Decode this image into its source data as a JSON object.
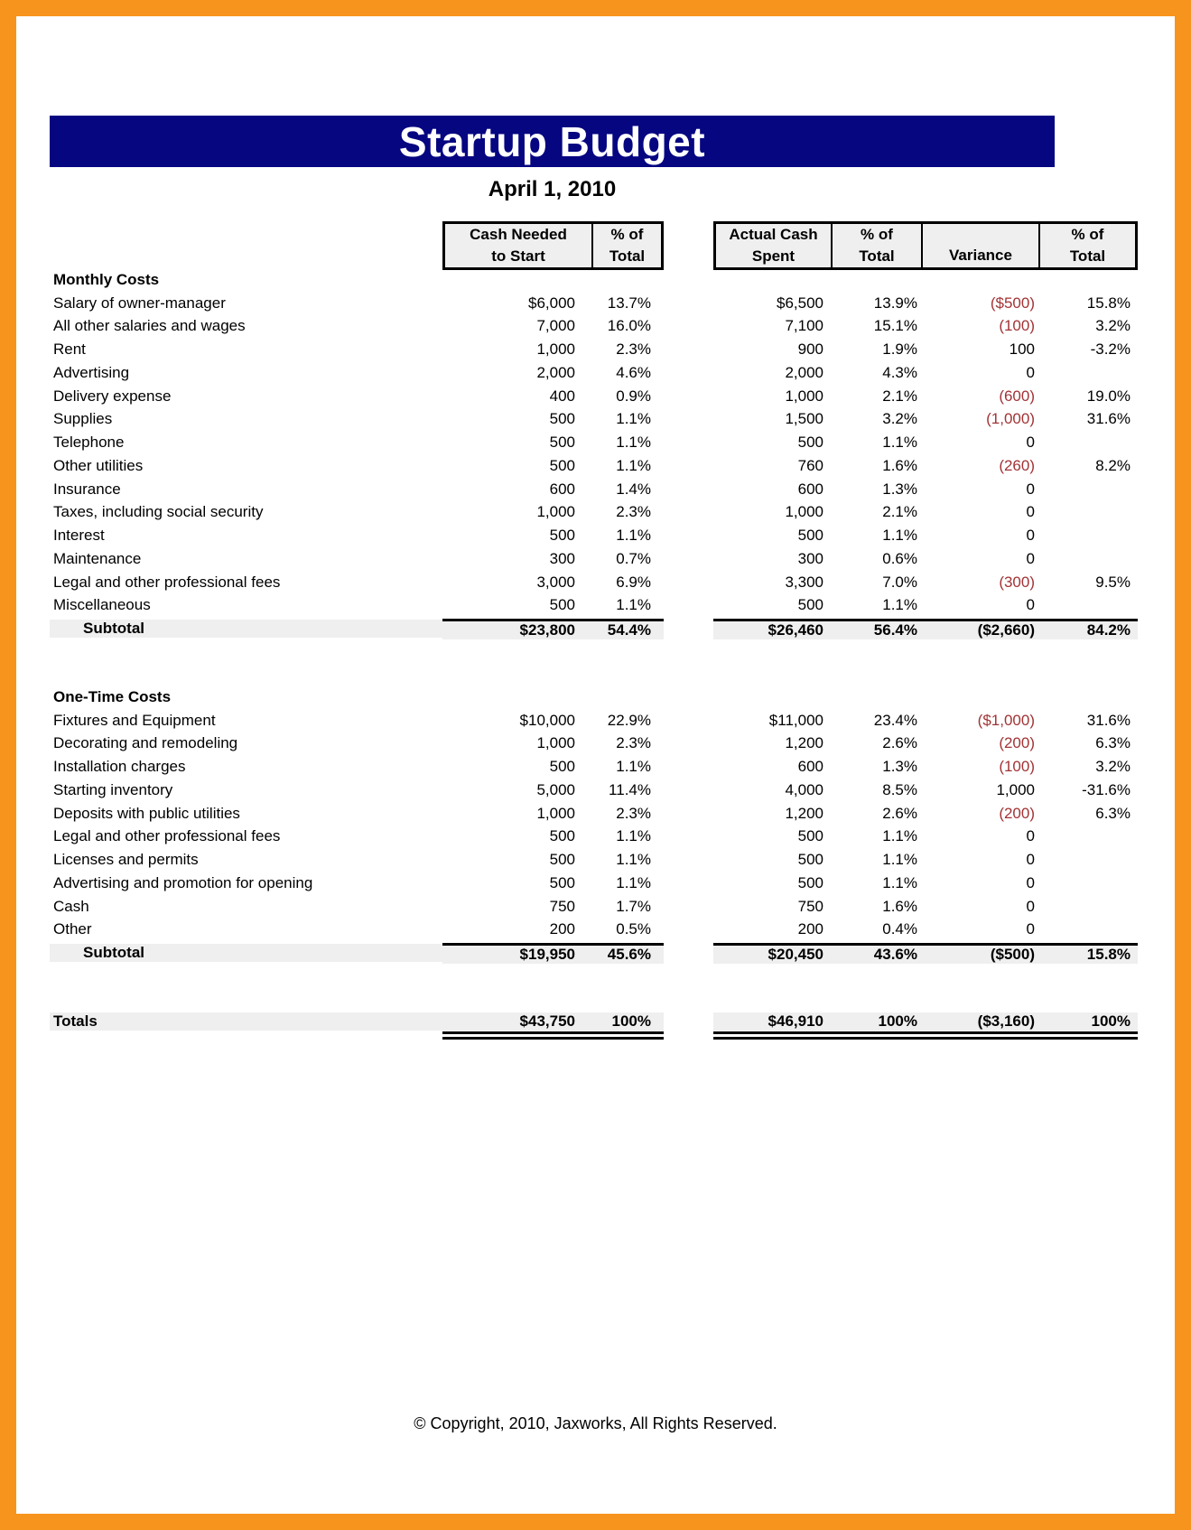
{
  "header": {
    "title": "Startup Budget",
    "date": "April 1, 2010"
  },
  "columns": {
    "group1": [
      {
        "top": "Cash Needed",
        "bottom": "to Start"
      },
      {
        "top": "% of",
        "bottom": "Total"
      }
    ],
    "group2": [
      {
        "top": "Actual Cash",
        "bottom": "Spent"
      },
      {
        "top": "% of",
        "bottom": "Total"
      },
      {
        "top": "",
        "bottom": "Variance"
      },
      {
        "top": "% of",
        "bottom": "Total"
      }
    ]
  },
  "sections": [
    {
      "name": "Monthly Costs",
      "rows": [
        {
          "label": "Salary of owner-manager",
          "cells": [
            "$6,000",
            "13.7%",
            "$6,500",
            "13.9%",
            "($500)",
            "15.8%"
          ]
        },
        {
          "label": "All other salaries and wages",
          "cells": [
            "7,000",
            "16.0%",
            "7,100",
            "15.1%",
            "(100)",
            "3.2%"
          ]
        },
        {
          "label": "Rent",
          "cells": [
            "1,000",
            "2.3%",
            "900",
            "1.9%",
            "100",
            "-3.2%"
          ]
        },
        {
          "label": "Advertising",
          "cells": [
            "2,000",
            "4.6%",
            "2,000",
            "4.3%",
            "0",
            ""
          ]
        },
        {
          "label": "Delivery expense",
          "cells": [
            "400",
            "0.9%",
            "1,000",
            "2.1%",
            "(600)",
            "19.0%"
          ]
        },
        {
          "label": "Supplies",
          "cells": [
            "500",
            "1.1%",
            "1,500",
            "3.2%",
            "(1,000)",
            "31.6%"
          ]
        },
        {
          "label": "Telephone",
          "cells": [
            "500",
            "1.1%",
            "500",
            "1.1%",
            "0",
            ""
          ]
        },
        {
          "label": "Other utilities",
          "cells": [
            "500",
            "1.1%",
            "760",
            "1.6%",
            "(260)",
            "8.2%"
          ]
        },
        {
          "label": "Insurance",
          "cells": [
            "600",
            "1.4%",
            "600",
            "1.3%",
            "0",
            ""
          ]
        },
        {
          "label": "Taxes, including social security",
          "cells": [
            "1,000",
            "2.3%",
            "1,000",
            "2.1%",
            "0",
            ""
          ]
        },
        {
          "label": "Interest",
          "cells": [
            "500",
            "1.1%",
            "500",
            "1.1%",
            "0",
            ""
          ]
        },
        {
          "label": "Maintenance",
          "cells": [
            "300",
            "0.7%",
            "300",
            "0.6%",
            "0",
            ""
          ]
        },
        {
          "label": "Legal and other professional fees",
          "cells": [
            "3,000",
            "6.9%",
            "3,300",
            "7.0%",
            "(300)",
            "9.5%"
          ]
        },
        {
          "label": "Miscellaneous",
          "cells": [
            "500",
            "1.1%",
            "500",
            "1.1%",
            "0",
            ""
          ]
        }
      ],
      "subtotal": {
        "label": "Subtotal",
        "cells": [
          "$23,800",
          "54.4%",
          "$26,460",
          "56.4%",
          "($2,660)",
          "84.2%"
        ]
      }
    },
    {
      "name": "One-Time Costs",
      "rows": [
        {
          "label": "Fixtures and Equipment",
          "cells": [
            "$10,000",
            "22.9%",
            "$11,000",
            "23.4%",
            "($1,000)",
            "31.6%"
          ]
        },
        {
          "label": "Decorating and remodeling",
          "cells": [
            "1,000",
            "2.3%",
            "1,200",
            "2.6%",
            "(200)",
            "6.3%"
          ]
        },
        {
          "label": "Installation charges",
          "cells": [
            "500",
            "1.1%",
            "600",
            "1.3%",
            "(100)",
            "3.2%"
          ]
        },
        {
          "label": "Starting inventory",
          "cells": [
            "5,000",
            "11.4%",
            "4,000",
            "8.5%",
            "1,000",
            "-31.6%"
          ]
        },
        {
          "label": "Deposits with public utilities",
          "cells": [
            "1,000",
            "2.3%",
            "1,200",
            "2.6%",
            "(200)",
            "6.3%"
          ]
        },
        {
          "label": "Legal and other professional fees",
          "cells": [
            "500",
            "1.1%",
            "500",
            "1.1%",
            "0",
            ""
          ]
        },
        {
          "label": "Licenses and permits",
          "cells": [
            "500",
            "1.1%",
            "500",
            "1.1%",
            "0",
            ""
          ]
        },
        {
          "label": "Advertising and promotion for opening",
          "cells": [
            "500",
            "1.1%",
            "500",
            "1.1%",
            "0",
            ""
          ]
        },
        {
          "label": "Cash",
          "cells": [
            "750",
            "1.7%",
            "750",
            "1.6%",
            "0",
            ""
          ]
        },
        {
          "label": "Other",
          "cells": [
            "200",
            "0.5%",
            "200",
            "0.4%",
            "0",
            ""
          ]
        }
      ],
      "subtotal": {
        "label": "Subtotal",
        "cells": [
          "$19,950",
          "45.6%",
          "$20,450",
          "43.6%",
          "($500)",
          "15.8%"
        ]
      }
    }
  ],
  "totals": {
    "label": "Totals",
    "cells": [
      "$43,750",
      "100%",
      "$46,910",
      "100%",
      "($3,160)",
      "100%"
    ]
  },
  "footer": {
    "copyright": "© Copyright, 2010, Jaxworks, All Rights Reserved."
  },
  "colors": {
    "frame_orange": "#F7941D",
    "title_bar_navy": "#060681",
    "title_text": "#FFFFFF",
    "negative_red": "#A23335",
    "band_gray": "#EFEFEF",
    "header_fill": "#EFEFEF"
  }
}
